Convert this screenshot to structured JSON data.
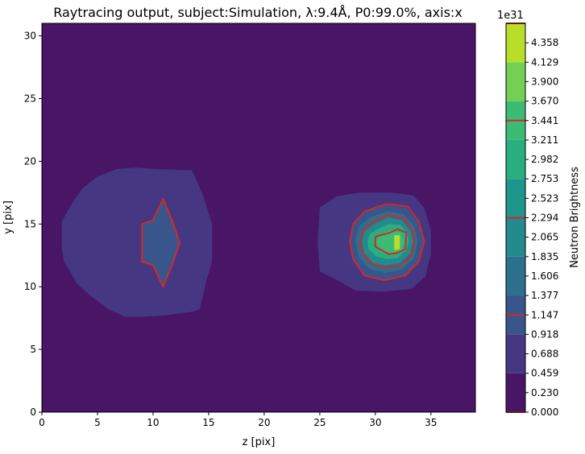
{
  "chart_data": {
    "type": "contour",
    "title": "Raytracing output, subject:Simulation, λ:9.4Å, P0:99.0%, axis:x",
    "xlabel": "z [pix]",
    "ylabel": "y [pix]",
    "xlim": [
      0,
      39
    ],
    "ylim": [
      0,
      31
    ],
    "xticks": [
      "0",
      "5",
      "10",
      "15",
      "20",
      "25",
      "30",
      "35"
    ],
    "yticks": [
      "0",
      "5",
      "10",
      "15",
      "20",
      "25",
      "30"
    ],
    "colorbar": {
      "label": "Neutron Brightness",
      "exponent": "1e31",
      "range": [
        0,
        4.588
      ],
      "ticks": [
        "0.000",
        "0.230",
        "0.459",
        "0.688",
        "0.918",
        "1.147",
        "1.377",
        "1.606",
        "1.835",
        "2.065",
        "2.294",
        "2.523",
        "2.753",
        "2.982",
        "3.211",
        "3.441",
        "3.670",
        "3.900",
        "4.129",
        "4.358"
      ],
      "bands": [
        {
          "from": 0.0,
          "to": 0.459,
          "color": "#481567"
        },
        {
          "from": 0.459,
          "to": 0.918,
          "color": "#453781"
        },
        {
          "from": 0.918,
          "to": 1.377,
          "color": "#39568c"
        },
        {
          "from": 1.377,
          "to": 1.835,
          "color": "#2d708e"
        },
        {
          "from": 1.835,
          "to": 2.294,
          "color": "#238a8d"
        },
        {
          "from": 2.294,
          "to": 2.753,
          "color": "#1f968b"
        },
        {
          "from": 2.753,
          "to": 3.211,
          "color": "#29af7f"
        },
        {
          "from": 3.211,
          "to": 3.67,
          "color": "#3cbb75"
        },
        {
          "from": 3.67,
          "to": 4.129,
          "color": "#73d055"
        },
        {
          "from": 4.129,
          "to": 4.588,
          "color": "#b8de29"
        }
      ],
      "contour_line_levels": [
        0.0,
        1.147,
        2.294,
        3.441,
        4.588
      ],
      "contour_line_color": "#d62728"
    },
    "background_color": "#481567",
    "regions": [
      {
        "name": "left-blob-outer",
        "level_color": "#453781",
        "points": [
          [
            3.6,
            17.8
          ],
          [
            5,
            18.8
          ],
          [
            6.8,
            19.4
          ],
          [
            8.5,
            19.5
          ],
          [
            10,
            19.4
          ],
          [
            12.5,
            19.3
          ],
          [
            13.5,
            19.3
          ],
          [
            14.5,
            17.3
          ],
          [
            15.3,
            15
          ],
          [
            15.3,
            13
          ],
          [
            15.3,
            12
          ],
          [
            14.8,
            10.5
          ],
          [
            14.2,
            8.2
          ],
          [
            13.5,
            8
          ],
          [
            11,
            7.7
          ],
          [
            9,
            7.6
          ],
          [
            7.5,
            7.6
          ],
          [
            6,
            8.2
          ],
          [
            4.5,
            9.2
          ],
          [
            3.2,
            10.2
          ],
          [
            2,
            12
          ],
          [
            1.8,
            13
          ],
          [
            1.8,
            15.2
          ],
          [
            2.6,
            16.5
          ]
        ]
      },
      {
        "name": "left-blob-inner",
        "level_color": "#39568c",
        "points": [
          [
            9,
            15
          ],
          [
            10,
            15.3
          ],
          [
            10.9,
            17
          ],
          [
            11.7,
            15.3
          ],
          [
            12.4,
            13.5
          ],
          [
            11.7,
            11.7
          ],
          [
            10.9,
            10
          ],
          [
            10,
            11.7
          ],
          [
            9,
            12
          ]
        ]
      },
      {
        "name": "right-blob-outer",
        "level_color": "#453781",
        "points": [
          [
            25,
            16.3
          ],
          [
            26.5,
            17.2
          ],
          [
            28.5,
            17.5
          ],
          [
            31.5,
            17.5
          ],
          [
            33.4,
            17.3
          ],
          [
            34.4,
            16.3
          ],
          [
            35,
            14.5
          ],
          [
            35,
            12.6
          ],
          [
            34.5,
            10.8
          ],
          [
            33.2,
            9.8
          ],
          [
            30.5,
            9.6
          ],
          [
            28.2,
            9.7
          ],
          [
            26.4,
            10.6
          ],
          [
            25,
            11.2
          ],
          [
            24.8,
            13.5
          ]
        ]
      },
      {
        "name": "right-blob-mid",
        "level_color": "#39568c",
        "points": [
          [
            29,
            16
          ],
          [
            31,
            16.5
          ],
          [
            32.8,
            16.3
          ],
          [
            33.9,
            15.1
          ],
          [
            34.4,
            13.6
          ],
          [
            33.9,
            12
          ],
          [
            32.7,
            10.9
          ],
          [
            30.8,
            10.5
          ],
          [
            29,
            10.9
          ],
          [
            28,
            12.2
          ],
          [
            27.7,
            13.6
          ],
          [
            28,
            15
          ]
        ]
      },
      {
        "name": "right-blob-inner-1",
        "level_color": "#2d708e",
        "points": [
          [
            29.5,
            15.5
          ],
          [
            31,
            16
          ],
          [
            32.5,
            15.8
          ],
          [
            33.5,
            14.8
          ],
          [
            33.8,
            13.6
          ],
          [
            33.5,
            12.3
          ],
          [
            32.4,
            11.4
          ],
          [
            30.9,
            11.1
          ],
          [
            29.5,
            11.4
          ],
          [
            28.5,
            12.4
          ],
          [
            28.2,
            13.6
          ],
          [
            28.5,
            14.8
          ]
        ]
      },
      {
        "name": "right-blob-inner-2",
        "level_color": "#238a8d",
        "points": [
          [
            29.9,
            15
          ],
          [
            31.1,
            15.5
          ],
          [
            32.4,
            15.3
          ],
          [
            33.1,
            14.5
          ],
          [
            33.4,
            13.6
          ],
          [
            33.1,
            12.6
          ],
          [
            32.2,
            11.9
          ],
          [
            30.9,
            11.7
          ],
          [
            29.8,
            11.9
          ],
          [
            29,
            12.7
          ],
          [
            28.8,
            13.6
          ],
          [
            29,
            14.4
          ]
        ]
      },
      {
        "name": "right-blob-inner-3",
        "level_color": "#29af7f",
        "points": [
          [
            30.2,
            14.6
          ],
          [
            31.2,
            15
          ],
          [
            32.3,
            14.9
          ],
          [
            32.9,
            14.2
          ],
          [
            33,
            13.6
          ],
          [
            32.8,
            12.9
          ],
          [
            32,
            12.3
          ],
          [
            31,
            12.2
          ],
          [
            30.1,
            12.4
          ],
          [
            29.4,
            13
          ],
          [
            29.3,
            13.6
          ],
          [
            29.5,
            14.2
          ]
        ]
      },
      {
        "name": "right-blob-inner-4",
        "level_color": "#3cbb75",
        "points": [
          [
            30.5,
            14.2
          ],
          [
            31.5,
            14.5
          ],
          [
            32.3,
            14.3
          ],
          [
            32.6,
            13.6
          ],
          [
            32.3,
            12.8
          ],
          [
            31.4,
            12.5
          ],
          [
            30.5,
            12.8
          ],
          [
            30,
            13.6
          ]
        ]
      },
      {
        "name": "right-blob-peak",
        "level_color": "#b8de29",
        "points": [
          [
            31.7,
            14.1
          ],
          [
            32.2,
            14.1
          ],
          [
            32.2,
            13
          ],
          [
            31.7,
            12.9
          ]
        ]
      }
    ],
    "contour_lines": [
      {
        "name": "left-contour-line",
        "points": [
          [
            9,
            15
          ],
          [
            10,
            15.3
          ],
          [
            10.9,
            17
          ],
          [
            11.7,
            15.3
          ],
          [
            12.4,
            13.5
          ],
          [
            11.7,
            11.7
          ],
          [
            10.9,
            10
          ],
          [
            10,
            11.7
          ],
          [
            9,
            12
          ],
          [
            9,
            15
          ]
        ]
      },
      {
        "name": "right-contour-line-1",
        "points": [
          [
            29,
            16
          ],
          [
            31,
            16.6
          ],
          [
            32.9,
            16.4
          ],
          [
            33.9,
            15.2
          ],
          [
            34.4,
            13.6
          ],
          [
            33.9,
            12
          ],
          [
            32.7,
            10.9
          ],
          [
            30.8,
            10.5
          ],
          [
            29,
            10.9
          ],
          [
            28,
            12.2
          ],
          [
            27.7,
            13.6
          ],
          [
            28,
            15
          ],
          [
            29,
            16
          ]
        ]
      },
      {
        "name": "right-contour-line-2",
        "points": [
          [
            29.8,
            15.2
          ],
          [
            31.1,
            15.7
          ],
          [
            32.5,
            15.5
          ],
          [
            33.3,
            14.6
          ],
          [
            33.5,
            13.6
          ],
          [
            33.2,
            12.5
          ],
          [
            32.3,
            11.7
          ],
          [
            30.9,
            11.5
          ],
          [
            29.7,
            11.8
          ],
          [
            28.9,
            12.6
          ],
          [
            28.6,
            13.6
          ],
          [
            28.9,
            14.5
          ],
          [
            29.8,
            15.2
          ]
        ]
      },
      {
        "name": "right-contour-line-3",
        "points": [
          [
            30,
            14
          ],
          [
            31.3,
            14.3
          ],
          [
            32,
            14.6
          ],
          [
            32.8,
            14.3
          ],
          [
            32.7,
            13
          ],
          [
            32,
            12.7
          ],
          [
            31.2,
            12.6
          ],
          [
            30,
            13.2
          ],
          [
            30,
            14
          ]
        ]
      }
    ]
  }
}
